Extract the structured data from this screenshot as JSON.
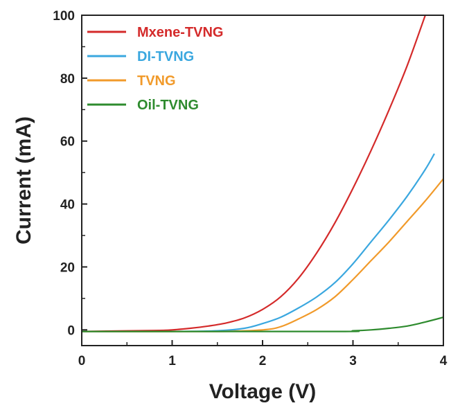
{
  "chart_data": {
    "type": "line",
    "title": "",
    "xlabel": "Voltage (V)",
    "ylabel": "Current (mA)",
    "xlim": [
      0,
      4
    ],
    "ylim": [
      -5,
      100
    ],
    "xticks": [
      0,
      1,
      2,
      3,
      4
    ],
    "yticks": [
      0,
      20,
      40,
      60,
      80,
      100
    ],
    "grid": false,
    "legend_position": "top-left",
    "series": [
      {
        "name": "Mxene-TVNG",
        "color": "#d42a2a",
        "x": [
          0,
          0.8,
          1.0,
          1.2,
          1.4,
          1.6,
          1.8,
          2.0,
          2.2,
          2.4,
          2.6,
          2.8,
          3.0,
          3.2,
          3.4,
          3.6,
          3.8
        ],
        "y": [
          -0.5,
          -0.2,
          0.0,
          0.5,
          1.2,
          2.2,
          3.8,
          6.5,
          10.5,
          16.5,
          24.5,
          34.0,
          45.0,
          57.0,
          70.0,
          84.0,
          100.0
        ]
      },
      {
        "name": "DI-TVNG",
        "color": "#3aa7df",
        "x": [
          0,
          1.0,
          1.5,
          1.8,
          2.0,
          2.2,
          2.4,
          2.6,
          2.8,
          3.0,
          3.2,
          3.4,
          3.6,
          3.8,
          3.9
        ],
        "y": [
          -0.5,
          -0.5,
          -0.3,
          0.5,
          2.0,
          4.0,
          7.0,
          10.5,
          15.0,
          21.0,
          28.0,
          35.0,
          42.5,
          51.0,
          56.0
        ]
      },
      {
        "name": "TVNG",
        "color": "#f19a2a",
        "x": [
          0,
          1.5,
          2.0,
          2.2,
          2.4,
          2.6,
          2.8,
          3.0,
          3.2,
          3.4,
          3.6,
          3.8,
          4.0
        ],
        "y": [
          -0.5,
          -0.5,
          0.0,
          1.0,
          3.5,
          6.5,
          10.5,
          16.0,
          22.0,
          28.0,
          34.5,
          41.0,
          48.0
        ]
      },
      {
        "name": "Oil-TVNG",
        "color": "#2e8b2e",
        "x": [
          0,
          2.8,
          3.0,
          3.2,
          3.4,
          3.6,
          3.8,
          4.0
        ],
        "y": [
          -0.5,
          -0.5,
          -0.3,
          0.0,
          0.5,
          1.2,
          2.5,
          4.0
        ]
      }
    ]
  }
}
